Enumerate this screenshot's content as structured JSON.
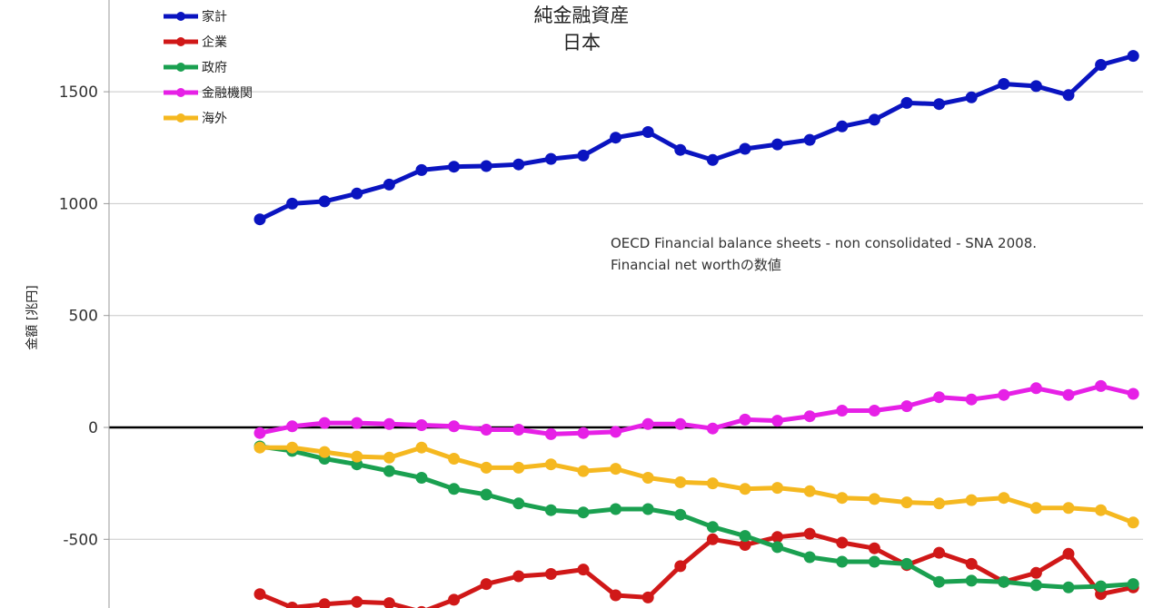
{
  "chart_data": {
    "type": "line",
    "title": "純金融資産",
    "subtitle": "日本",
    "ylabel": "金額 [兆円]",
    "xlabel": "",
    "annotation_lines": [
      "OECD Financial balance sheets - non consolidated - SNA 2008.",
      "Financial net worthの数値"
    ],
    "ylim": [
      -800,
      1900
    ],
    "yticks": [
      -500,
      0,
      500,
      1000,
      1500
    ],
    "grid": true,
    "legend_position": "top-left",
    "series": [
      {
        "name": "家計",
        "color": "#0a14c0",
        "values": [
          930,
          1000,
          1010,
          1045,
          1085,
          1150,
          1165,
          1168,
          1175,
          1200,
          1215,
          1295,
          1320,
          1240,
          1195,
          1245,
          1265,
          1285,
          1345,
          1375,
          1450,
          1445,
          1475,
          1535,
          1525,
          1485,
          1620,
          1660
        ]
      },
      {
        "name": "企業",
        "color": "#d01818",
        "values": [
          -745,
          -805,
          -790,
          -780,
          -785,
          -825,
          -770,
          -700,
          -665,
          -655,
          -635,
          -750,
          -760,
          -620,
          -500,
          -525,
          -490,
          -475,
          -515,
          -540,
          -615,
          -560,
          -610,
          -690,
          -650,
          -565,
          -745,
          -715
        ]
      },
      {
        "name": "政府",
        "color": "#1aa050",
        "values": [
          -85,
          -105,
          -140,
          -165,
          -195,
          -225,
          -275,
          -300,
          -340,
          -370,
          -380,
          -365,
          -365,
          -390,
          -445,
          -485,
          -535,
          -580,
          -600,
          -600,
          -610,
          -690,
          -685,
          -690,
          -705,
          -715,
          -710,
          -700
        ]
      },
      {
        "name": "金融機関",
        "color": "#e620e6",
        "values": [
          -25,
          5,
          20,
          20,
          15,
          10,
          5,
          -10,
          -10,
          -30,
          -25,
          -20,
          15,
          15,
          -5,
          35,
          30,
          50,
          75,
          75,
          95,
          135,
          125,
          145,
          175,
          145,
          185,
          150
        ]
      },
      {
        "name": "海外",
        "color": "#f5b820",
        "values": [
          -90,
          -90,
          -110,
          -130,
          -135,
          -90,
          -140,
          -180,
          -180,
          -165,
          -195,
          -185,
          -225,
          -245,
          -250,
          -275,
          -270,
          -285,
          -315,
          -320,
          -335,
          -340,
          -325,
          -315,
          -360,
          -360,
          -370,
          -425
        ]
      }
    ]
  }
}
